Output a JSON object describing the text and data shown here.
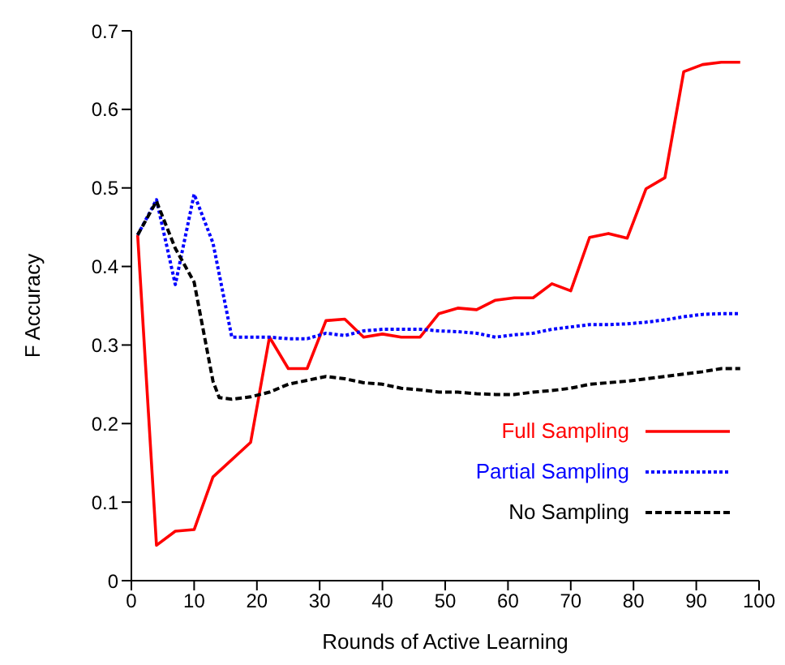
{
  "chart_data": {
    "type": "line",
    "xlabel": "Rounds of Active Learning",
    "ylabel": "F Accuracy",
    "xlim": [
      0,
      100
    ],
    "xticks": [
      0,
      10,
      20,
      30,
      40,
      50,
      60,
      70,
      80,
      90,
      100
    ],
    "ylim": [
      0,
      0.7
    ],
    "yticks": [
      0,
      0.1,
      0.2,
      0.3,
      0.4,
      0.5,
      0.6,
      0.7
    ],
    "legend": "bottom right",
    "marker": "none",
    "series": [
      {
        "name": "Full Sampling",
        "color": "#ff0000",
        "line_style": "solid",
        "x": [
          1,
          4,
          7,
          10,
          13,
          19,
          22,
          25,
          28,
          31,
          34,
          37,
          40,
          43,
          46,
          49,
          52,
          55,
          58,
          61,
          64,
          67,
          70,
          73,
          76,
          79,
          82,
          85,
          88,
          91,
          94,
          97
        ],
        "values": [
          0.44,
          0.045,
          0.063,
          0.065,
          0.132,
          0.176,
          0.31,
          0.27,
          0.27,
          0.331,
          0.333,
          0.31,
          0.314,
          0.31,
          0.31,
          0.34,
          0.347,
          0.345,
          0.357,
          0.36,
          0.36,
          0.378,
          0.369,
          0.437,
          0.442,
          0.436,
          0.499,
          0.513,
          0.648,
          0.657,
          0.66,
          0.66
        ]
      },
      {
        "name": "Partial Sampling",
        "color": "#0000ff",
        "line_style": "dotted",
        "x": [
          1,
          4,
          7,
          10,
          13,
          16,
          19,
          22,
          25,
          28,
          31,
          34,
          37,
          40,
          43,
          46,
          49,
          52,
          55,
          58,
          61,
          64,
          67,
          70,
          73,
          76,
          79,
          82,
          85,
          88,
          91,
          94,
          97
        ],
        "values": [
          0.44,
          0.485,
          0.377,
          0.492,
          0.43,
          0.31,
          0.31,
          0.31,
          0.308,
          0.308,
          0.315,
          0.312,
          0.318,
          0.32,
          0.32,
          0.32,
          0.318,
          0.317,
          0.315,
          0.31,
          0.313,
          0.315,
          0.32,
          0.323,
          0.326,
          0.326,
          0.327,
          0.329,
          0.332,
          0.336,
          0.339,
          0.34,
          0.34
        ]
      },
      {
        "name": "No Sampling",
        "color": "#000000",
        "line_style": "dashed",
        "x": [
          1,
          4,
          7,
          10,
          13,
          14,
          16,
          19,
          22,
          25,
          28,
          31,
          34,
          37,
          40,
          43,
          46,
          49,
          52,
          55,
          58,
          61,
          64,
          67,
          70,
          73,
          76,
          79,
          82,
          85,
          88,
          91,
          94,
          97
        ],
        "values": [
          0.44,
          0.483,
          0.423,
          0.38,
          0.254,
          0.233,
          0.231,
          0.234,
          0.24,
          0.25,
          0.255,
          0.26,
          0.257,
          0.252,
          0.25,
          0.245,
          0.243,
          0.24,
          0.24,
          0.238,
          0.237,
          0.237,
          0.24,
          0.242,
          0.245,
          0.25,
          0.252,
          0.254,
          0.257,
          0.26,
          0.263,
          0.266,
          0.27,
          0.27
        ]
      }
    ]
  }
}
